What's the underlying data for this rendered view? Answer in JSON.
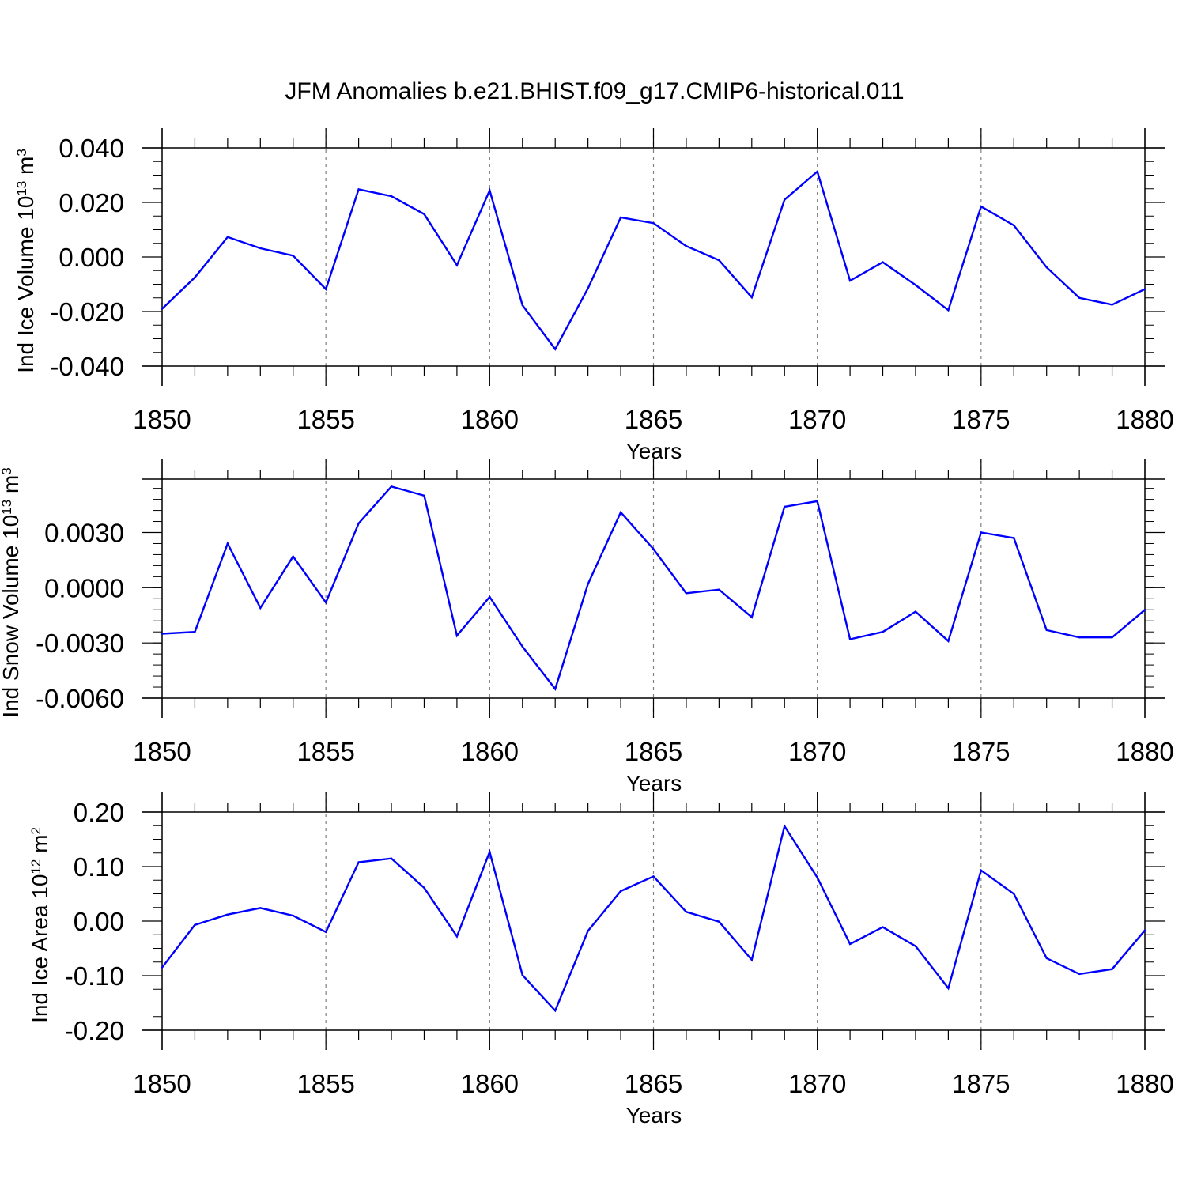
{
  "title": "JFM Anomalies b.e21.BHIST.f09_g17.CMIP6-historical.011",
  "colors": {
    "series": "#0000ff",
    "axis": "#000000",
    "grid": "#808080"
  },
  "chart_data": [
    {
      "type": "line",
      "ylabel": "Ind Ice Volume 10",
      "ylabel_exp": "13",
      "ylabel_unit": " m",
      "ylabel_unit_exp": "3",
      "xlabel": "Years",
      "xlim": [
        1850,
        1880
      ],
      "ylim": [
        -0.04,
        0.04
      ],
      "xticks": [
        "1850",
        "1855",
        "1860",
        "1865",
        "1870",
        "1875",
        "1880"
      ],
      "yticks": [
        {
          "value": 0.04,
          "label": "0.040"
        },
        {
          "value": 0.02,
          "label": "0.020"
        },
        {
          "value": 0.0,
          "label": "0.000"
        },
        {
          "value": -0.02,
          "label": "-0.020"
        },
        {
          "value": -0.04,
          "label": "-0.040"
        }
      ],
      "ytick_minor_step": 0.005,
      "grid_x": true,
      "x": [
        1850,
        1851,
        1852,
        1853,
        1854,
        1855,
        1856,
        1857,
        1858,
        1859,
        1860,
        1861,
        1862,
        1863,
        1864,
        1865,
        1866,
        1867,
        1868,
        1869,
        1870,
        1871,
        1872,
        1873,
        1874,
        1875,
        1876,
        1877,
        1878,
        1879,
        1880
      ],
      "values": [
        -0.019,
        -0.0075,
        0.0073,
        0.0032,
        0.0005,
        -0.0118,
        0.0248,
        0.0223,
        0.0157,
        -0.003,
        0.0244,
        -0.0177,
        -0.0338,
        -0.0115,
        0.0145,
        0.0124,
        0.004,
        -0.0012,
        -0.0148,
        0.021,
        0.0313,
        -0.0087,
        -0.0019,
        -0.0103,
        -0.0195,
        0.0185,
        0.0116,
        -0.0038,
        -0.015,
        -0.0175,
        -0.0118
      ]
    },
    {
      "type": "line",
      "ylabel": "Ind Snow Volume 10",
      "ylabel_exp": "13",
      "ylabel_unit": " m",
      "ylabel_unit_exp": "3",
      "xlabel": "Years",
      "xlim": [
        1850,
        1880
      ],
      "ylim": [
        -0.006,
        0.0059
      ],
      "xticks": [
        "1850",
        "1855",
        "1860",
        "1865",
        "1870",
        "1875",
        "1880"
      ],
      "yticks": [
        {
          "value": 0.003,
          "label": "0.0030"
        },
        {
          "value": 0.0,
          "label": "0.0000"
        },
        {
          "value": -0.003,
          "label": "-0.0030"
        },
        {
          "value": -0.006,
          "label": "-0.0060"
        }
      ],
      "ytick_minor_step": 0.0006,
      "grid_x": true,
      "x": [
        1850,
        1851,
        1852,
        1853,
        1854,
        1855,
        1856,
        1857,
        1858,
        1859,
        1860,
        1861,
        1862,
        1863,
        1864,
        1865,
        1866,
        1867,
        1868,
        1869,
        1870,
        1871,
        1872,
        1873,
        1874,
        1875,
        1876,
        1877,
        1878,
        1879,
        1880
      ],
      "values": [
        -0.0025,
        -0.0024,
        0.0024,
        -0.0011,
        0.0017,
        -0.0008,
        0.0035,
        0.0055,
        0.005,
        -0.0026,
        -0.0005,
        -0.0032,
        -0.0055,
        0.0002,
        0.0041,
        0.0021,
        -0.0003,
        -0.0001,
        -0.0016,
        0.0044,
        0.0047,
        -0.0028,
        -0.0024,
        -0.0013,
        -0.0029,
        0.003,
        0.0027,
        -0.0023,
        -0.0027,
        -0.0027,
        -0.0012
      ]
    },
    {
      "type": "line",
      "ylabel": "Ind Ice Area 10",
      "ylabel_exp": "12",
      "ylabel_unit": " m",
      "ylabel_unit_exp": "2",
      "xlabel": "Years",
      "xlim": [
        1850,
        1880
      ],
      "ylim": [
        -0.2,
        0.2
      ],
      "xticks": [
        "1850",
        "1855",
        "1860",
        "1865",
        "1870",
        "1875",
        "1880"
      ],
      "yticks": [
        {
          "value": 0.2,
          "label": "0.20"
        },
        {
          "value": 0.1,
          "label": "0.10"
        },
        {
          "value": 0.0,
          "label": "0.00"
        },
        {
          "value": -0.1,
          "label": "-0.10"
        },
        {
          "value": -0.2,
          "label": "-0.20"
        }
      ],
      "ytick_minor_step": 0.025,
      "grid_x": true,
      "x": [
        1850,
        1851,
        1852,
        1853,
        1854,
        1855,
        1856,
        1857,
        1858,
        1859,
        1860,
        1861,
        1862,
        1863,
        1864,
        1865,
        1866,
        1867,
        1868,
        1869,
        1870,
        1871,
        1872,
        1873,
        1874,
        1875,
        1876,
        1877,
        1878,
        1879,
        1880
      ],
      "values": [
        -0.085,
        -0.007,
        0.012,
        0.024,
        0.01,
        -0.02,
        0.108,
        0.115,
        0.061,
        -0.028,
        0.127,
        -0.099,
        -0.164,
        -0.018,
        0.055,
        0.082,
        0.017,
        -0.001,
        -0.071,
        0.174,
        0.08,
        -0.042,
        -0.011,
        -0.046,
        -0.123,
        0.093,
        0.05,
        -0.068,
        -0.097,
        -0.088,
        -0.017
      ]
    }
  ]
}
